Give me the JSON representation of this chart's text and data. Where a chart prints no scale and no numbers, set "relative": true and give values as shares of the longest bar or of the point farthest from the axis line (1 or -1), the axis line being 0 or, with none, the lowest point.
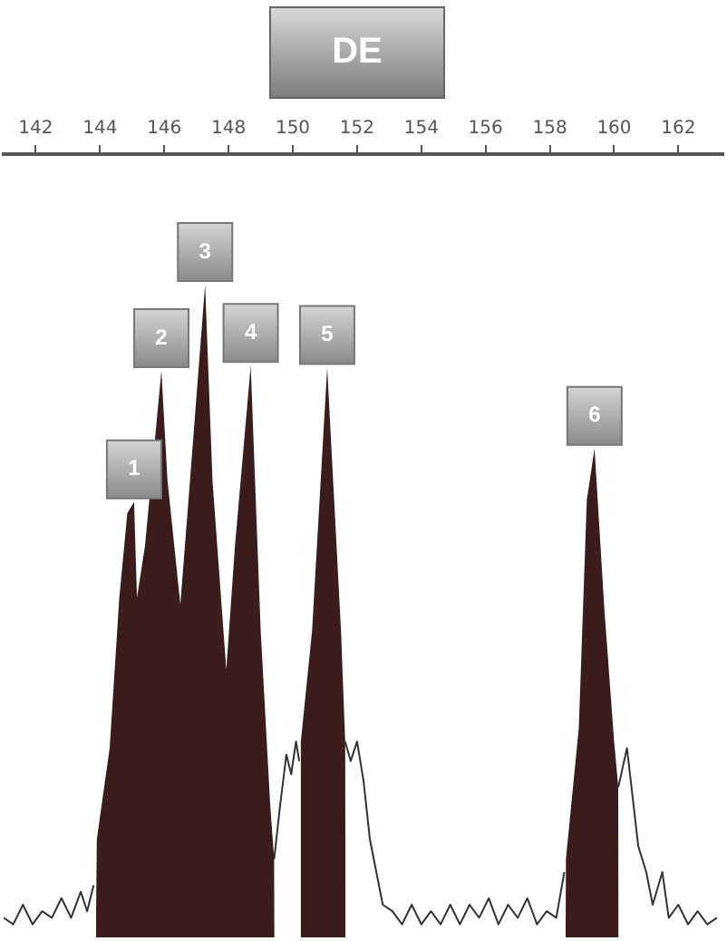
{
  "chart_data": {
    "type": "line",
    "title": "DE",
    "relative": true,
    "tick_labels": "x",
    "grid": false,
    "marker": "none",
    "line_style": "solid",
    "xlim": [
      141,
      163.4
    ],
    "xticks": [
      142,
      144,
      146,
      148,
      150,
      152,
      154,
      156,
      158,
      160,
      162
    ],
    "series": [
      {
        "type": "line",
        "color": "#333333",
        "x": [
          141.0,
          141.3,
          141.6,
          141.9,
          142.2,
          142.5,
          142.8,
          143.1,
          143.4,
          143.6,
          143.8,
          146.5,
          149.42,
          149.6,
          149.8,
          149.95,
          150.1,
          150.2,
          150.9,
          151.63,
          151.8,
          152.0,
          152.2,
          152.4,
          152.6,
          152.8,
          153.1,
          153.4,
          153.7,
          154.0,
          154.3,
          154.6,
          154.9,
          155.2,
          155.5,
          155.8,
          156.1,
          156.4,
          156.7,
          157.0,
          157.3,
          157.6,
          157.9,
          158.2,
          158.45,
          159.3,
          160.13,
          160.4,
          160.75,
          161.0,
          161.2,
          161.5,
          161.7,
          162.0,
          162.3,
          162.6,
          162.9,
          163.2
        ],
        "values": [
          0.03,
          0.02,
          0.05,
          0.02,
          0.04,
          0.03,
          0.06,
          0.03,
          0.07,
          0.04,
          0.08,
          null,
          0.12,
          0.2,
          0.28,
          0.25,
          0.3,
          0.27,
          null,
          0.3,
          0.27,
          0.3,
          0.24,
          0.15,
          0.1,
          0.05,
          0.04,
          0.02,
          0.05,
          0.02,
          0.04,
          0.02,
          0.05,
          0.02,
          0.05,
          0.03,
          0.06,
          0.02,
          0.05,
          0.03,
          0.06,
          0.02,
          0.04,
          0.03,
          0.1,
          null,
          0.23,
          0.29,
          0.14,
          0.1,
          0.05,
          0.1,
          0.03,
          0.05,
          0.02,
          0.04,
          0.02,
          0.03
        ]
      },
      {
        "type": "area",
        "color": "#3a1c1c",
        "x": [
          143.87,
          143.9,
          144.3,
          144.6,
          144.85,
          145.06,
          145.15,
          145.4,
          145.91,
          146.1,
          146.5,
          146.8,
          147.27,
          147.5,
          147.93,
          148.2,
          148.69,
          149.0,
          149.3,
          149.42,
          149.43,
          149.9,
          150.22,
          150.25,
          150.6,
          151.07,
          151.5,
          151.63,
          151.64,
          155.0,
          158.49,
          158.5,
          158.9,
          159.15,
          159.39,
          159.7,
          160.0,
          160.13,
          160.14
        ],
        "values": [
          0,
          0.15,
          0.29,
          0.52,
          0.65,
          0.667,
          0.52,
          0.6,
          0.868,
          0.7,
          0.51,
          0.7,
          1,
          0.7,
          0.41,
          0.6,
          0.876,
          0.47,
          0.2,
          0.12,
          0,
          null,
          0,
          0.3,
          0.47,
          0.873,
          0.47,
          0.3,
          0,
          null,
          0,
          0.12,
          0.32,
          0.67,
          0.749,
          0.5,
          0.3,
          0.23,
          0
        ]
      }
    ],
    "annotations": [
      {
        "text": "1",
        "x": 145.06,
        "y": 0.667
      },
      {
        "text": "2",
        "x": 145.91,
        "y": 0.868
      },
      {
        "text": "3",
        "x": 147.27,
        "y": 1
      },
      {
        "text": "4",
        "x": 148.69,
        "y": 0.876
      },
      {
        "text": "5",
        "x": 151.07,
        "y": 0.873
      },
      {
        "text": "6",
        "x": 159.39,
        "y": 0.749
      }
    ]
  }
}
